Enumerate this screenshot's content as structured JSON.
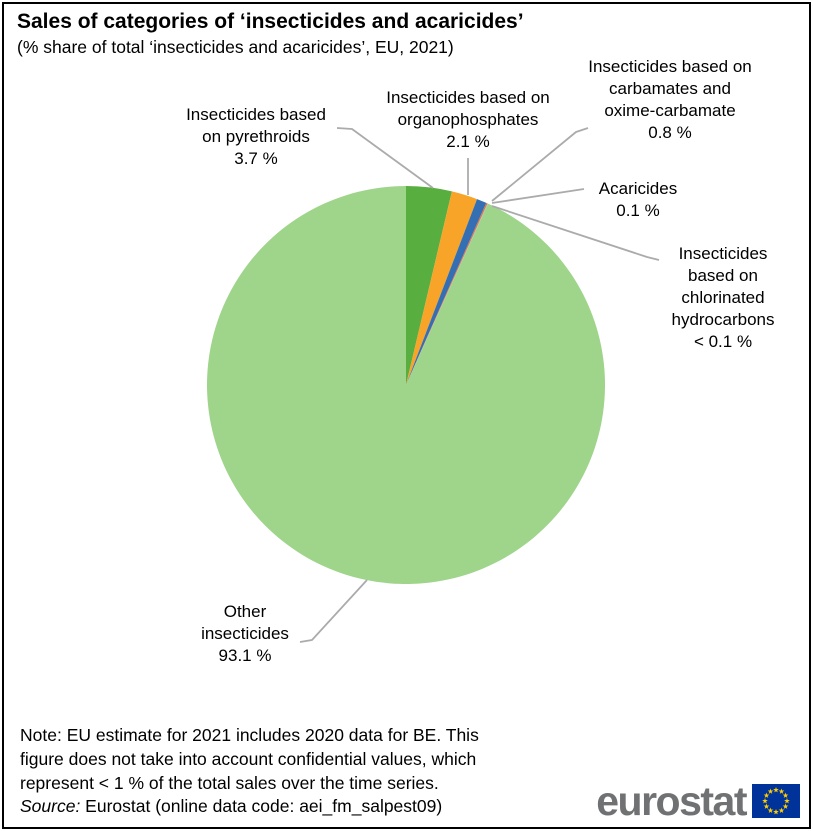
{
  "chart_data": {
    "type": "pie",
    "title": "Sales of categories of ‘insecticides and acaricides’",
    "subtitle": "(% share of total ‘insecticides and acaricides’, EU, 2021)",
    "start_angle_deg": -90,
    "direction": "clockwise",
    "legend": "none (labels with leader lines)",
    "slices": [
      {
        "id": "pyrethroids",
        "label": "Insecticides based\non pyrethroids",
        "value": 3.7,
        "display": "3.7 %",
        "color": "#58AE3E"
      },
      {
        "id": "organophosphates",
        "label": "Insecticides based on\norganophosphates",
        "value": 2.1,
        "display": "2.1 %",
        "color": "#F7A428"
      },
      {
        "id": "carbamates",
        "label": "Insecticides based on\ncarbamates and\noxime-carbamate",
        "value": 0.8,
        "display": "0.8 %",
        "color": "#356FB3"
      },
      {
        "id": "acaricides",
        "label": "Acaricides",
        "value": 0.1,
        "display": "0.1 %",
        "color": "#E2703F"
      },
      {
        "id": "chlorinated-hydrocarbons",
        "label": "Insecticides\nbased on\nchlorinated\nhydrocarbons",
        "value": 0.05,
        "display": "< 0.1 %",
        "color": "#B3B3B3"
      },
      {
        "id": "other-insecticides",
        "label": "Other\ninsecticides",
        "value": 93.1,
        "display": "93.1 %",
        "color": "#9FD48B"
      }
    ]
  },
  "note": {
    "text": "Note: EU estimate for 2021 includes 2020 data for BE. This\nfigure does not take into account confidential values, which\nrepresent < 1 % of the total sales over the time series.",
    "source_label": "Source:",
    "source_text": " Eurostat (online data code: aei_fm_salpest09)"
  },
  "logo": {
    "wordmark": "eurostat",
    "text_color": "#6F7173",
    "flag_color": "#003399",
    "star_color": "#FFCC00"
  }
}
